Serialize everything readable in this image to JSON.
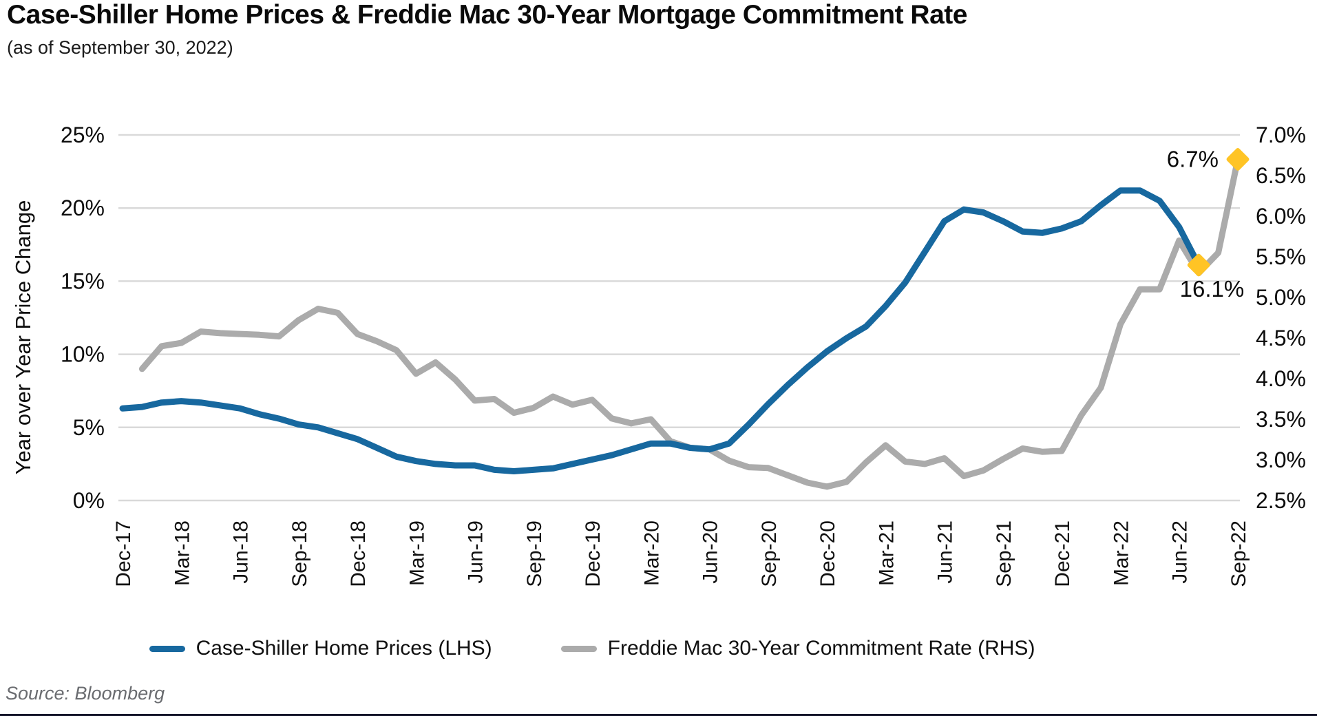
{
  "header": {
    "title": "Case-Shiller Home Prices & Freddie Mac 30-Year Mortgage Commitment Rate",
    "subtitle": "(as of September 30, 2022)"
  },
  "source_note": "Source: Bloomberg",
  "colors": {
    "blue_line": "#17689F",
    "gray_line": "#ABABAB",
    "gold_marker": "#FFC425",
    "gridline": "#D9D9D9",
    "axis_text": "#0d0d0d",
    "annotation_text": "#0a0a0a",
    "bottom_rule": "#15162b"
  },
  "chart_data": {
    "type": "line",
    "title": "Case-Shiller Home Prices & Freddie Mac 30-Year Mortgage Commitment Rate",
    "subtitle": "(as of September 30, 2022)",
    "grid": "horizontal-only",
    "legend_position": "bottom",
    "x_start_month": "Dec-17",
    "x_end_month": "Sep-22",
    "x_months_total": 58,
    "x_tick_labels": [
      "Dec-17",
      "Mar-18",
      "Jun-18",
      "Sep-18",
      "Dec-18",
      "Mar-19",
      "Jun-19",
      "Sep-19",
      "Dec-19",
      "Mar-20",
      "Jun-20",
      "Sep-20",
      "Dec-20",
      "Mar-21",
      "Jun-21",
      "Sep-21",
      "Dec-21",
      "Mar-22",
      "Jun-22",
      "Sep-22"
    ],
    "left_axis": {
      "label": "Year over Year Price Change",
      "min": 0,
      "max": 25,
      "ticks": [
        {
          "label": "0%",
          "value": 0
        },
        {
          "label": "5%",
          "value": 5
        },
        {
          "label": "10%",
          "value": 10
        },
        {
          "label": "15%",
          "value": 15
        },
        {
          "label": "20%",
          "value": 20
        },
        {
          "label": "25%",
          "value": 25
        }
      ]
    },
    "right_axis": {
      "label": "",
      "min": 2.5,
      "max": 7.0,
      "ticks": [
        {
          "label": "7.0%",
          "value": 7.0
        },
        {
          "label": "6.5%",
          "value": 6.5
        },
        {
          "label": "6.0%",
          "value": 6.0
        },
        {
          "label": "5.5%",
          "value": 5.5
        },
        {
          "label": "5.0%",
          "value": 5.0
        },
        {
          "label": "4.5%",
          "value": 4.5
        },
        {
          "label": "4.0%",
          "value": 4.0
        },
        {
          "label": "3.5%",
          "value": 3.5
        },
        {
          "label": "3.0%",
          "value": 3.0
        },
        {
          "label": "2.5%",
          "value": 2.5
        }
      ]
    },
    "series": [
      {
        "name": "Case-Shiller Home Prices (LHS)",
        "axis": "left",
        "color": "#17689F",
        "start_month_index": 0,
        "start_month": "Dec-17",
        "end_month": "Jul-22",
        "values": [
          6.3,
          6.4,
          6.7,
          6.8,
          6.7,
          6.5,
          6.3,
          5.9,
          5.6,
          5.2,
          5.0,
          4.6,
          4.2,
          3.6,
          3.0,
          2.7,
          2.5,
          2.4,
          2.4,
          2.1,
          2.0,
          2.1,
          2.2,
          2.5,
          2.8,
          3.1,
          3.5,
          3.9,
          3.9,
          3.6,
          3.5,
          3.9,
          5.2,
          6.6,
          7.9,
          9.1,
          10.2,
          11.1,
          11.9,
          13.3,
          14.9,
          17.0,
          19.1,
          19.9,
          19.7,
          19.1,
          18.4,
          18.3,
          18.6,
          19.1,
          20.2,
          21.2,
          21.2,
          20.5,
          18.7,
          16.1
        ],
        "end_marker": {
          "shape": "diamond",
          "color": "#FFC425",
          "label": "16.1%"
        }
      },
      {
        "name": "Freddie Mac 30-Year Commitment Rate (RHS)",
        "axis": "right",
        "color": "#ABABAB",
        "start_month_index": 1,
        "start_month": "Jan-18",
        "end_month": "Sep-22",
        "values": [
          4.12,
          4.4,
          4.44,
          4.58,
          4.56,
          4.55,
          4.54,
          4.52,
          4.72,
          4.86,
          4.81,
          4.55,
          4.46,
          4.35,
          4.06,
          4.2,
          3.99,
          3.73,
          3.75,
          3.58,
          3.64,
          3.78,
          3.68,
          3.74,
          3.51,
          3.45,
          3.5,
          3.23,
          3.15,
          3.13,
          2.99,
          2.91,
          2.9,
          2.81,
          2.72,
          2.67,
          2.73,
          2.97,
          3.18,
          2.98,
          2.95,
          3.02,
          2.8,
          2.87,
          3.01,
          3.14,
          3.1,
          3.11,
          3.55,
          3.89,
          4.67,
          5.1,
          5.1,
          5.7,
          5.3,
          5.55,
          6.7
        ],
        "end_marker": {
          "shape": "diamond",
          "color": "#FFC425",
          "label": "6.7%"
        }
      }
    ],
    "annotations": [
      {
        "text": "6.7%",
        "attached_to": "Freddie Mac 30-Year Commitment Rate (RHS)",
        "position": "left-of-end-marker"
      },
      {
        "text": "16.1%",
        "attached_to": "Case-Shiller Home Prices (LHS)",
        "position": "below-right-of-end-marker"
      }
    ]
  }
}
